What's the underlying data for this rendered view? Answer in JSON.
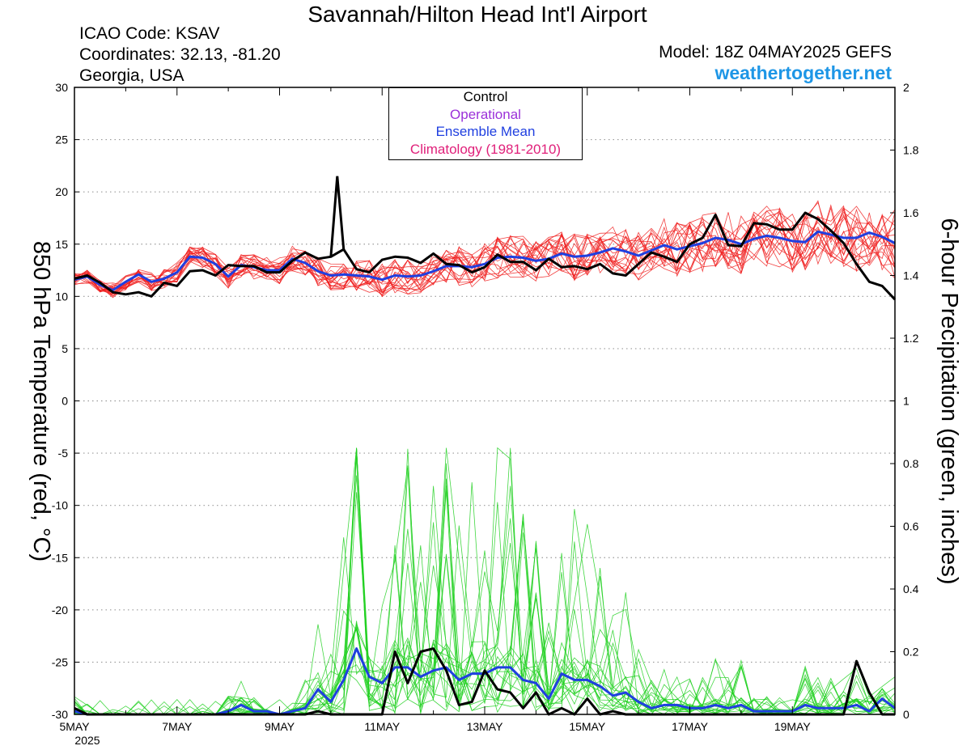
{
  "header": {
    "title": "Savannah/Hilton Head Int'l Airport",
    "icao": "ICAO Code: KSAV",
    "coordinates": "Coordinates: 32.13, -81.20",
    "region": "Georgia, USA",
    "model": "Model: 18Z 04MAY2025 GEFS",
    "site": "weathertogether.net"
  },
  "legend": {
    "items": [
      {
        "label": "Control",
        "color": "#000000"
      },
      {
        "label": "Operational",
        "color": "#9b30d9"
      },
      {
        "label": "Ensemble Mean",
        "color": "#1f3fe0"
      },
      {
        "label": "Climatology (1981-2010)",
        "color": "#e0207a"
      }
    ]
  },
  "colors": {
    "members_temp": "#f02020",
    "members_precip": "#20d020",
    "control": "#000000",
    "mean": "#1f3fe0"
  },
  "chart_data": {
    "type": "line",
    "xlabel": "",
    "ylabel": "850 hPa Temperature (red, °C)",
    "ylabel_right": "6-hour Precipitation (green, inches)",
    "x_tick_labels": [
      "5MAY",
      "7MAY",
      "9MAY",
      "11MAY",
      "13MAY",
      "15MAY",
      "17MAY",
      "19MAY"
    ],
    "x_tick_sublabel": "2025",
    "ylim": [
      -30,
      30
    ],
    "yticks": [
      30,
      25,
      20,
      15,
      10,
      5,
      0,
      -5,
      -10,
      -15,
      -20,
      -25,
      -30
    ],
    "ylim_right": [
      0,
      2
    ],
    "yticks_right": [
      "2",
      "1.8",
      "1.6",
      "1.4",
      "1.2",
      "1",
      "0.8",
      "0.6",
      "0.4",
      "0.2",
      "0"
    ],
    "grid": "horizontal dotted",
    "x_start": "2025-05-05 00Z",
    "time_step_hours": 6,
    "series": [
      {
        "name": "Control",
        "axis": "left",
        "kind": "temperature",
        "values": [
          11.7,
          12.0,
          11.3,
          10.4,
          10.2,
          10.4,
          10.0,
          11.3,
          11.0,
          12.4,
          12.5,
          12.0,
          13.0,
          12.9,
          12.9,
          12.3,
          12.3,
          13.4,
          14.2,
          13.6,
          13.8,
          14.5,
          12.6,
          12.3,
          13.5,
          13.8,
          13.7,
          13.2,
          14.1,
          13.1,
          13.0,
          12.3,
          12.8,
          14.0,
          13.3,
          13.3,
          12.5,
          13.6,
          12.8,
          12.9,
          12.6,
          13.1,
          12.2,
          12.0,
          13.1,
          14.2,
          13.8,
          13.3,
          15.0,
          15.6,
          17.8,
          14.9,
          14.8,
          17.0,
          16.9,
          16.4,
          16.4,
          18.0,
          17.4,
          16.3,
          15.1,
          13.1,
          11.4,
          11.0,
          9.7
        ]
      },
      {
        "name": "Ensemble Mean",
        "axis": "left",
        "kind": "temperature",
        "values": [
          11.6,
          11.9,
          11.1,
          10.6,
          11.4,
          12.1,
          11.4,
          11.7,
          12.3,
          13.8,
          13.7,
          13.1,
          11.9,
          13.0,
          12.8,
          12.5,
          12.5,
          13.6,
          13.2,
          12.4,
          12.0,
          12.1,
          12.0,
          11.9,
          11.6,
          12.0,
          11.9,
          12.0,
          12.4,
          12.9,
          12.9,
          12.8,
          13.1,
          13.7,
          13.8,
          13.7,
          13.4,
          13.6,
          14.1,
          13.8,
          13.9,
          14.2,
          14.6,
          14.3,
          13.9,
          14.4,
          14.9,
          14.5,
          14.8,
          15.1,
          15.6,
          15.4,
          15.0,
          15.5,
          15.8,
          15.6,
          15.3,
          15.2,
          16.2,
          15.9,
          15.6,
          15.6,
          16.1,
          15.7,
          15.1
        ]
      },
      {
        "name": "Control precipitation",
        "axis": "right",
        "kind": "precipitation",
        "values": [
          0.02,
          0,
          0,
          0,
          0,
          0,
          0,
          0,
          0,
          0,
          0,
          0,
          0,
          0,
          0,
          0,
          0,
          0,
          0,
          0.01,
          0,
          0,
          0,
          0,
          0,
          0.2,
          0.1,
          0.2,
          0.21,
          0.14,
          0.03,
          0.04,
          0.14,
          0.08,
          0.07,
          0.02,
          0.07,
          0,
          0.02,
          0,
          0.05,
          0,
          0.01,
          0,
          0,
          0,
          0,
          0,
          0,
          0,
          0,
          0,
          0,
          0,
          0,
          0,
          0,
          0,
          0,
          0,
          0,
          0.17,
          0.07,
          0,
          0
        ]
      },
      {
        "name": "Ensemble Mean precipitation",
        "axis": "right",
        "kind": "precipitation",
        "values": [
          0.01,
          0.0,
          0,
          0,
          0,
          0,
          0,
          0,
          0,
          0,
          0,
          0.0,
          0.01,
          0.03,
          0.01,
          0.01,
          0,
          0.01,
          0.02,
          0.08,
          0.04,
          0.11,
          0.21,
          0.12,
          0.1,
          0.15,
          0.15,
          0.12,
          0.14,
          0.15,
          0.11,
          0.13,
          0.13,
          0.15,
          0.15,
          0.11,
          0.1,
          0.05,
          0.13,
          0.11,
          0.11,
          0.09,
          0.06,
          0.07,
          0.04,
          0.02,
          0.03,
          0.03,
          0.02,
          0.02,
          0.03,
          0.02,
          0.03,
          0.01,
          0.01,
          0.01,
          0.01,
          0.03,
          0.02,
          0.02,
          0.02,
          0.03,
          0.01,
          0.05,
          0.02
        ]
      }
    ]
  }
}
